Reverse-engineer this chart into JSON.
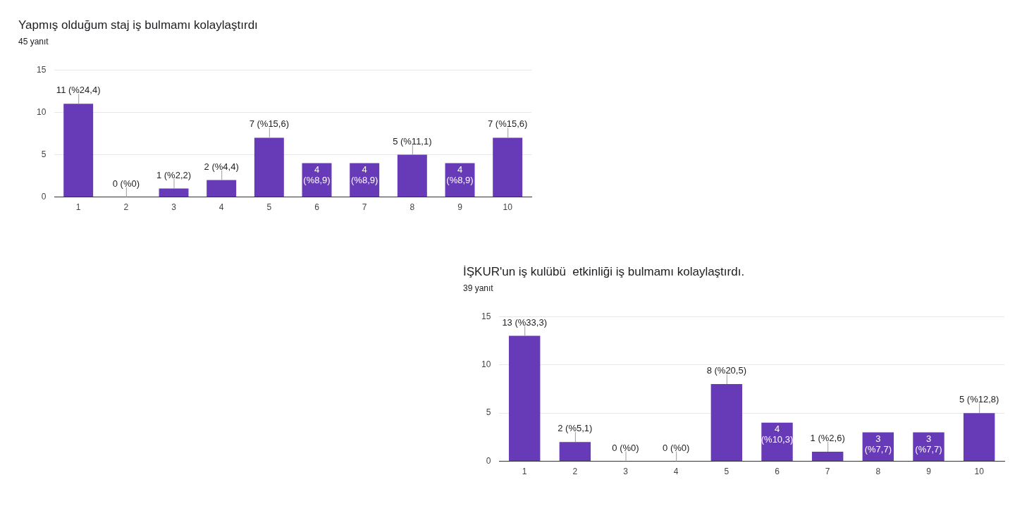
{
  "chart_data": [
    {
      "type": "bar",
      "title": "Yapmış olduğum staj iş bulmamı kolaylaştırdı",
      "subtitle": "45 yanıt",
      "categories": [
        "1",
        "2",
        "3",
        "4",
        "5",
        "6",
        "7",
        "8",
        "9",
        "10"
      ],
      "values": [
        11,
        0,
        1,
        2,
        7,
        4,
        4,
        5,
        4,
        7
      ],
      "color": "#673ab7",
      "value_labels": [
        "11 (%24,4)",
        "0 (%0)",
        "1 (%2,2)",
        "2 (%4,4)",
        "7 (%15,6)",
        "4 (%8,9)",
        "4 (%8,9)",
        "5 (%11,1)",
        "4 (%8,9)",
        "7 (%15,6)"
      ],
      "ylim": [
        0,
        15
      ],
      "yticks": [
        0,
        5,
        10,
        15
      ],
      "grid": "y",
      "legend": false
    },
    {
      "type": "bar",
      "title": "İŞKUR'un iş kulübü  etkinliği iş bulmamı kolaylaştırdı.",
      "subtitle": "39 yanıt",
      "categories": [
        "1",
        "2",
        "3",
        "4",
        "5",
        "6",
        "7",
        "8",
        "9",
        "10"
      ],
      "values": [
        13,
        2,
        0,
        0,
        8,
        4,
        1,
        3,
        3,
        5
      ],
      "color": "#673ab7",
      "value_labels": [
        "13 (%33,3)",
        "2 (%5,1)",
        "0 (%0)",
        "0 (%0)",
        "8 (%20,5)",
        "4 (%10,3)",
        "1 (%2,6)",
        "3 (%7,7)",
        "3 (%7,7)",
        "5 (%12,8)"
      ],
      "ylim": [
        0,
        15
      ],
      "yticks": [
        0,
        5,
        10,
        15
      ],
      "grid": "y",
      "legend": false
    }
  ]
}
